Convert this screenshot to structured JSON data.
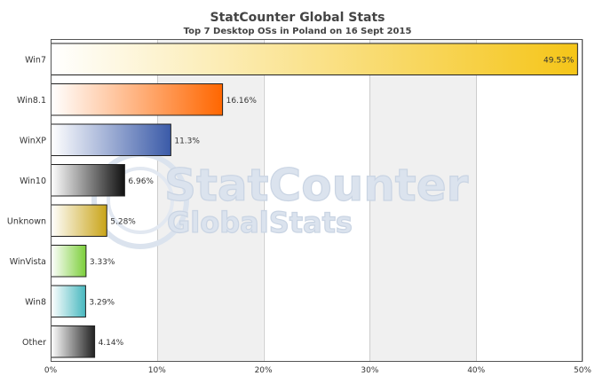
{
  "chart_data": {
    "type": "bar",
    "orientation": "horizontal",
    "title": "StatCounter Global Stats",
    "subtitle": "Top 7 Desktop OSs in Poland on 16 Sept 2015",
    "categories": [
      "Win7",
      "Win8.1",
      "WinXP",
      "Win10",
      "Unknown",
      "WinVista",
      "Win8",
      "Other"
    ],
    "values": [
      49.53,
      16.16,
      11.3,
      6.96,
      5.28,
      3.33,
      3.29,
      4.14
    ],
    "value_labels": [
      "49.53%",
      "16.16%",
      "11.3%",
      "6.96%",
      "5.28%",
      "3.33%",
      "3.29%",
      "4.14%"
    ],
    "bar_colors": [
      "#f5c518",
      "#ff6600",
      "#3a5aa8",
      "#111111",
      "#c9a418",
      "#7ccf3a",
      "#47b8bf",
      "#222222"
    ],
    "xlim": [
      0,
      50
    ],
    "x_ticks": [
      0,
      10,
      20,
      30,
      40,
      50
    ],
    "x_tick_labels": [
      "0%",
      "10%",
      "20%",
      "30%",
      "40%",
      "50%"
    ],
    "grid": true,
    "legend": "none"
  },
  "watermark": {
    "line1": "StatCounter",
    "line2": "GlobalStats"
  }
}
